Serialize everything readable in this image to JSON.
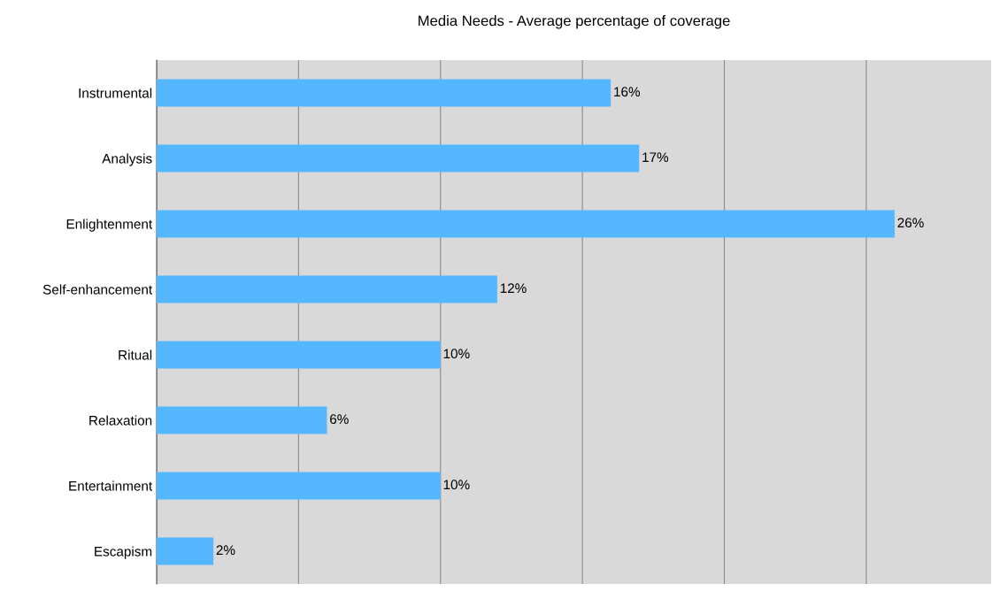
{
  "chart_data": {
    "type": "bar",
    "orientation": "horizontal",
    "title": "Media Needs - Average percentage of coverage",
    "categories": [
      "Instrumental",
      "Analysis",
      "Enlightenment",
      "Self-enhancement",
      "Ritual",
      "Relaxation",
      "Entertainment",
      "Escapism"
    ],
    "values": [
      16,
      17,
      26,
      12,
      10,
      6,
      10,
      2
    ],
    "value_labels": [
      "16%",
      "17%",
      "26%",
      "12%",
      "10%",
      "6%",
      "10%",
      "2%"
    ],
    "color": "#55b8ff",
    "xlim": [
      0,
      29.4
    ],
    "xticks": [
      {
        "value": 0,
        "label": null
      },
      {
        "value": 5,
        "label": null
      },
      {
        "value": 10,
        "label": null
      },
      {
        "value": 15,
        "label": null
      },
      {
        "value": 20,
        "label": null
      },
      {
        "value": 25,
        "label": null
      }
    ],
    "grid": "x",
    "tick_labels": "y"
  }
}
